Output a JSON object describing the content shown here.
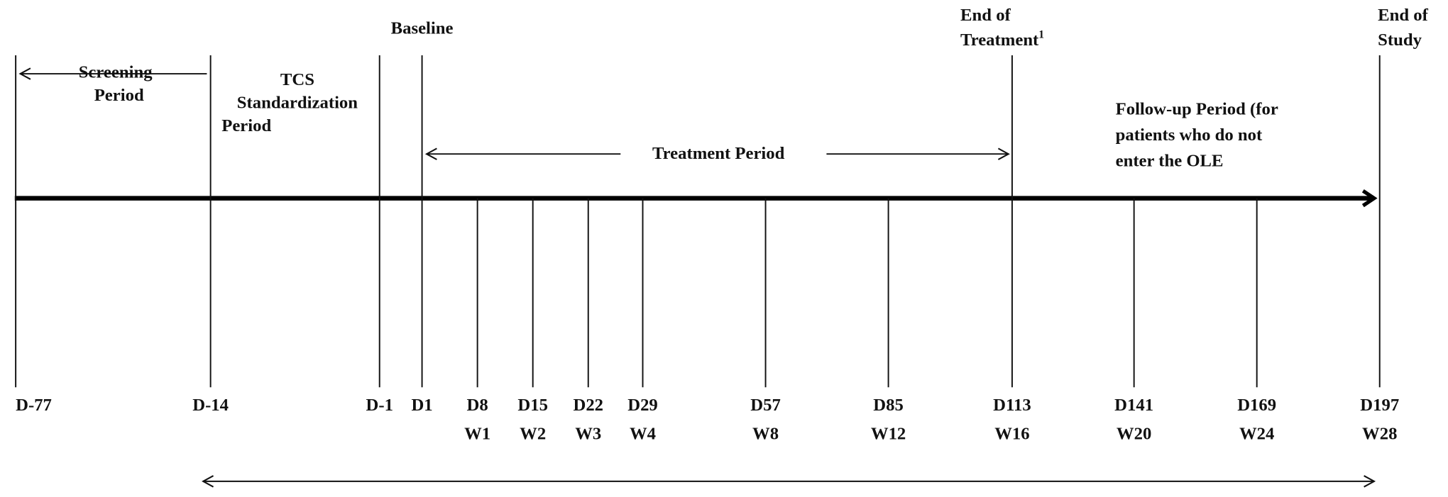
{
  "milestones": [
    {
      "lines": [
        "Baseline"
      ]
    },
    {
      "lines": [
        "End of",
        "Treatment"
      ],
      "footnote": "1"
    },
    {
      "lines": [
        "End of",
        "Study"
      ]
    }
  ],
  "periods": [
    {
      "lines": [
        "Screening",
        "Period"
      ]
    },
    {
      "lines": [
        "TCS",
        "Standardization",
        "Period"
      ]
    },
    {
      "lines": [
        "Treatment Period"
      ]
    },
    {
      "lines": [
        "Follow-up Period (for",
        "patients who do not",
        "enter the OLE"
      ]
    }
  ],
  "timepoints": [
    {
      "day": "D-77"
    },
    {
      "day": "D-14"
    },
    {
      "day": "D-1"
    },
    {
      "day": "D1"
    },
    {
      "day": "D8",
      "week": "W1"
    },
    {
      "day": "D15",
      "week": "W2"
    },
    {
      "day": "D22",
      "week": "W3"
    },
    {
      "day": "D29",
      "week": "W4"
    },
    {
      "day": "D57",
      "week": "W8"
    },
    {
      "day": "D85",
      "week": "W12"
    },
    {
      "day": "D113",
      "week": "W16"
    },
    {
      "day": "D141",
      "week": "W20"
    },
    {
      "day": "D169",
      "week": "W24"
    },
    {
      "day": "D197",
      "week": "W28"
    }
  ]
}
